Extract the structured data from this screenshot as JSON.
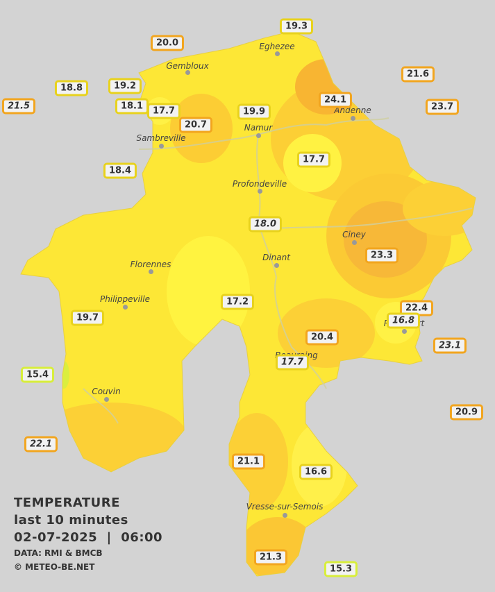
{
  "title": {
    "heading": "TEMPERATURE",
    "period": "last 10 minutes",
    "datetime": "02-07-2025  |  06:00",
    "source": "DATA: RMI & BMCB",
    "credit": "© METEO-BE.NET"
  },
  "cities": [
    "Eghezee",
    "Gembloux",
    "Andenne",
    "Namur",
    "Sambreville",
    "Profondeville",
    "Ciney",
    "Dinant",
    "Florennes",
    "Philippeville",
    "Beauraing",
    "Rochefort",
    "Couvin",
    "Vresse-sur-Semois"
  ],
  "stations": [
    "19.3",
    "20.0",
    "21.6",
    "18.8",
    "19.2",
    "21.5",
    "24.1",
    "23.7",
    "18.1",
    "17.7",
    "19.9",
    "20.7",
    "18.4",
    "17.7",
    "18.0",
    "23.3",
    "17.2",
    "22.4",
    "16.8",
    "19.7",
    "20.4",
    "23.1",
    "17.7",
    "15.4",
    "20.9",
    "22.1",
    "21.1",
    "16.6",
    "21.3",
    "15.3"
  ]
}
